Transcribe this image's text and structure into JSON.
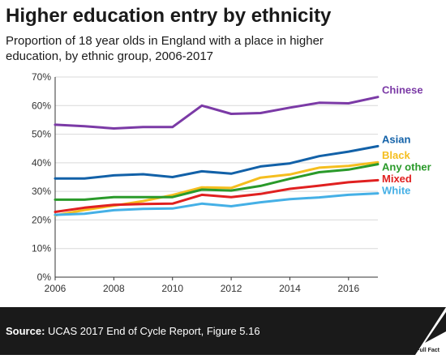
{
  "header": {
    "title": "Higher education entry by ethnicity",
    "subtitle": "Proportion of 18 year olds in England with a place in higher education, by ethnic group, 2006-2017"
  },
  "footer": {
    "source_label": "Source:",
    "source_text": "UCAS 2017 End of Cycle Report, Figure 5.16",
    "logo_text": "Full Fact"
  },
  "chart_data": {
    "type": "line",
    "x": [
      2006,
      2007,
      2008,
      2009,
      2010,
      2011,
      2012,
      2013,
      2014,
      2015,
      2016,
      2017
    ],
    "x_ticks": [
      "2006",
      "2008",
      "2010",
      "2012",
      "2014",
      "2016"
    ],
    "y_ticks": [
      "0%",
      "10%",
      "20%",
      "30%",
      "40%",
      "50%",
      "60%",
      "70%"
    ],
    "xlim": [
      2006,
      2017
    ],
    "ylim": [
      0,
      70
    ],
    "grid": "horizontal",
    "series": [
      {
        "name": "Chinese",
        "color": "#7b3aa6",
        "values": [
          53.3,
          52.8,
          52.0,
          52.5,
          52.5,
          60.0,
          57.1,
          57.4,
          59.3,
          61.0,
          60.8,
          63.0
        ]
      },
      {
        "name": "Asian",
        "color": "#1261a8",
        "values": [
          34.5,
          34.5,
          35.6,
          36.0,
          35.0,
          37.0,
          36.2,
          38.7,
          39.8,
          42.3,
          43.9,
          45.8
        ]
      },
      {
        "name": "Black",
        "color": "#f5be1f",
        "values": [
          21.6,
          23.5,
          25.0,
          26.6,
          28.7,
          31.4,
          31.2,
          34.8,
          35.9,
          38.3,
          38.9,
          40.2
        ]
      },
      {
        "name": "Any other",
        "color": "#2a9a2a",
        "values": [
          27.1,
          27.1,
          28.0,
          28.0,
          28.0,
          30.6,
          30.3,
          31.9,
          34.4,
          36.7,
          37.6,
          39.5
        ]
      },
      {
        "name": "Mixed",
        "color": "#e02020",
        "values": [
          22.8,
          24.3,
          25.3,
          25.6,
          25.7,
          28.8,
          28.0,
          29.1,
          30.9,
          32.0,
          33.2,
          33.9
        ]
      },
      {
        "name": "White",
        "color": "#45b0e6",
        "values": [
          21.8,
          22.2,
          23.4,
          23.9,
          24.0,
          25.7,
          24.8,
          26.2,
          27.3,
          27.9,
          28.8,
          29.3
        ]
      }
    ]
  }
}
